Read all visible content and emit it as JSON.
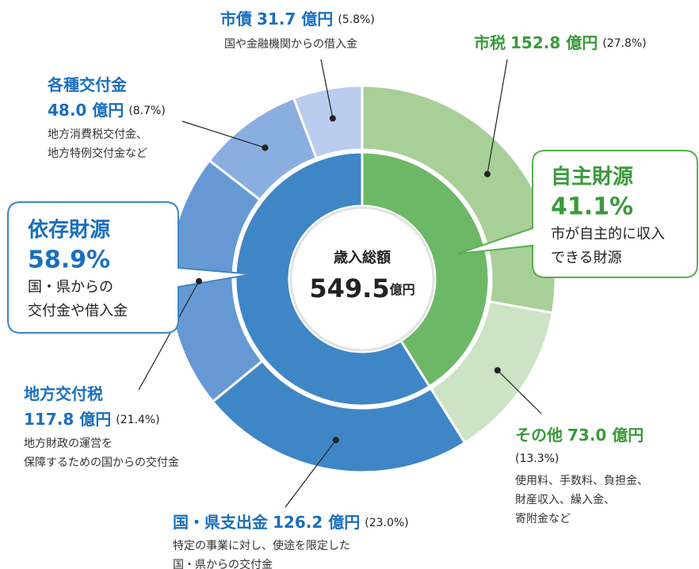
{
  "chart_data": {
    "type": "nested_donut",
    "center": {
      "label": "歳入総額",
      "value": 549.5,
      "value_label": "549.5",
      "unit": "億円"
    },
    "outer": {
      "names": [
        "市税",
        "その他",
        "国・県支出金",
        "地方交付税",
        "各種交付金",
        "市債"
      ],
      "values": [
        152.8,
        73.0,
        126.2,
        117.8,
        48.0,
        31.7
      ],
      "value_labels": [
        "152.8 億円",
        "73.0 億円",
        "126.2 億円",
        "117.8 億円",
        "48.0 億円",
        "31.7 億円"
      ],
      "percents": [
        27.8,
        13.3,
        23.0,
        21.4,
        8.7,
        5.8
      ],
      "percent_labels": [
        "(27.8%)",
        "(13.3%)",
        "(23.0%)",
        "(21.4%)",
        "(8.7%)",
        "(5.8%)"
      ],
      "descriptions": [
        [],
        [
          "使用料、手数料、負担金、",
          "財産収入、繰入金、",
          "寄附金など"
        ],
        [
          "特定の事業に対し、使途を限定した",
          "国・県からの交付金"
        ],
        [
          "地方財政の運営を",
          "保障するための国からの交付金"
        ],
        [
          "地方消費税交付金、",
          "地方特例交付金など"
        ],
        [
          "国や金融機関からの借入金"
        ]
      ],
      "colors": [
        "#a8cf98",
        "#cde3c5",
        "#3f86c6",
        "#6699d4",
        "#8aaee0",
        "#bacdee"
      ]
    },
    "inner": {
      "names": [
        "自主財源",
        "依存財源"
      ],
      "values": [
        41.1,
        58.9
      ],
      "value_labels": [
        "41.1%",
        "58.9%"
      ],
      "descriptions": [
        [
          "市が自主的に収入",
          "できる財源"
        ],
        [
          "国・県からの",
          "交付金や借入金"
        ]
      ],
      "colors": [
        "#6db866",
        "#3f86c6"
      ]
    }
  }
}
